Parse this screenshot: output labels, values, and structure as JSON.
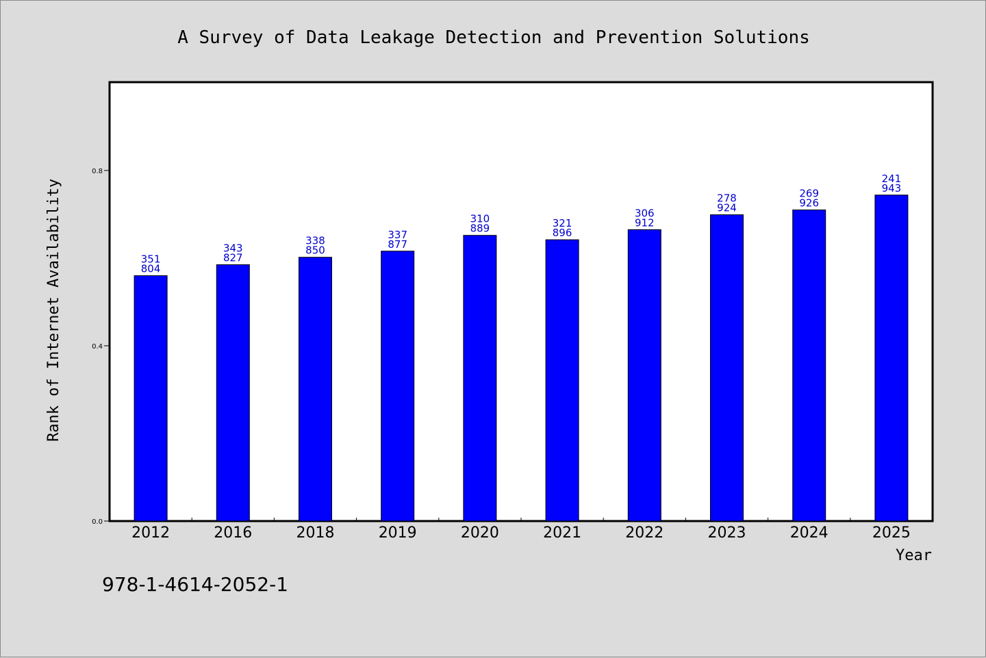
{
  "chart_data": {
    "type": "bar",
    "title": "A Survey of Data Leakage Detection and Prevention Solutions",
    "xlabel": "Year",
    "ylabel": "Rank of Internet Availability",
    "categories": [
      "2012",
      "2016",
      "2018",
      "2019",
      "2020",
      "2021",
      "2022",
      "2023",
      "2024",
      "2025"
    ],
    "values": [
      0.56,
      0.585,
      0.602,
      0.616,
      0.652,
      0.642,
      0.665,
      0.699,
      0.71,
      0.744
    ],
    "data_labels": [
      [
        "351",
        "804"
      ],
      [
        "343",
        "827"
      ],
      [
        "338",
        "850"
      ],
      [
        "337",
        "877"
      ],
      [
        "310",
        "889"
      ],
      [
        "321",
        "896"
      ],
      [
        "306",
        "912"
      ],
      [
        "278",
        "924"
      ],
      [
        "269",
        "926"
      ],
      [
        "241",
        "943"
      ]
    ],
    "ylim": [
      0,
      1.0
    ],
    "yticks": [
      0.0,
      0.4,
      0.8
    ],
    "ytick_labels": [
      "0.0",
      "0.4",
      "0.8"
    ],
    "grid": false,
    "colors": {
      "bar": "#0000ff",
      "data_label": "#0000cc",
      "background": "#dcdcdc",
      "plot_background": "#ffffff"
    }
  },
  "footer": {
    "identifier": "978-1-4614-2052-1"
  }
}
